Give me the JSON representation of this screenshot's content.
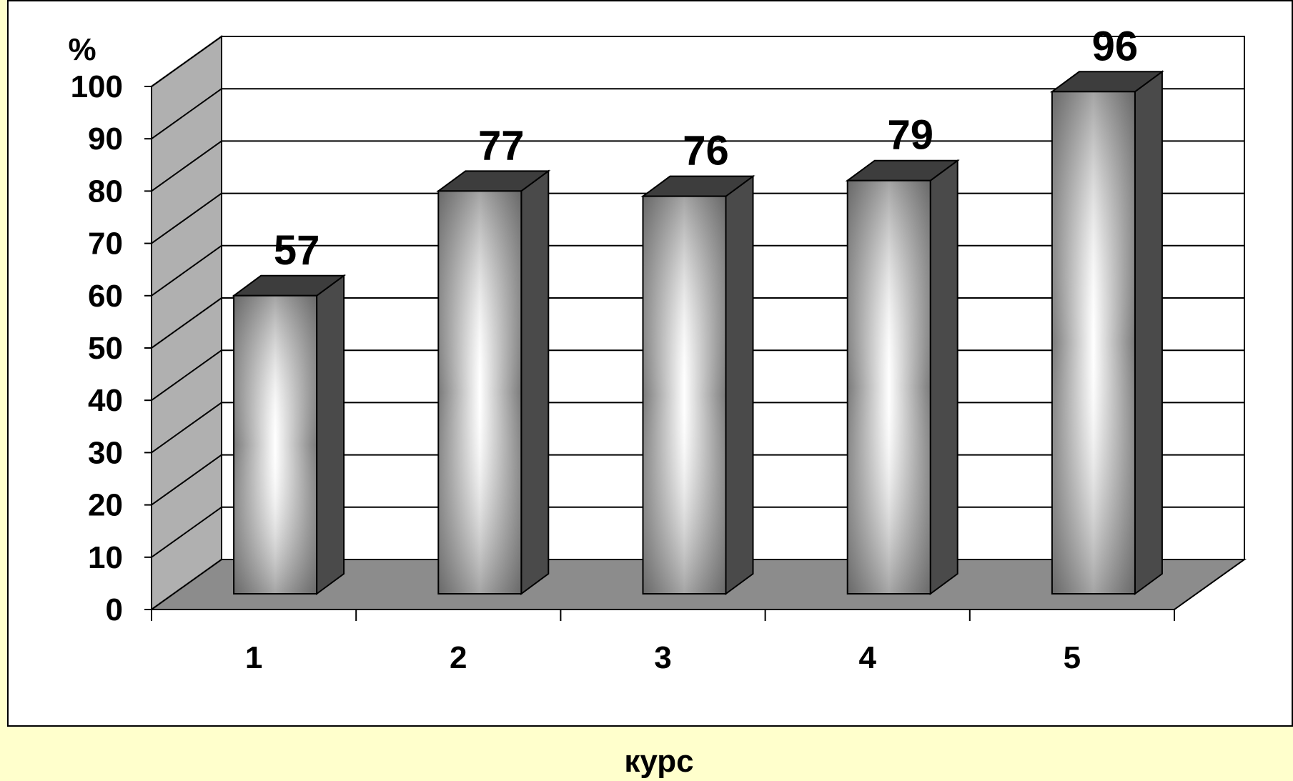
{
  "page": {
    "background": "#ffffcc",
    "plot_background": "#ffffff"
  },
  "chart_data": {
    "type": "bar",
    "style": "3d-column",
    "categories": [
      "1",
      "2",
      "3",
      "4",
      "5"
    ],
    "values": [
      57,
      77,
      76,
      79,
      96
    ],
    "data_labels": [
      "57",
      "77",
      "76",
      "79",
      "96"
    ],
    "title": "",
    "xlabel": "курс",
    "ylabel": "%",
    "ylim": [
      0,
      100
    ],
    "yticks": [
      "0",
      "10",
      "20",
      "30",
      "40",
      "50",
      "60",
      "70",
      "80",
      "90",
      "100"
    ],
    "grid": true,
    "legend": false,
    "colors": {
      "bar_front_edge": "#7a7a7a",
      "bar_front_center": "#ffffff",
      "bar_side": "#4a4a4a",
      "bar_top": "#3d3d3d",
      "wall_side": "#b0b0b0",
      "floor": "#8c8c8c",
      "gridline": "#000000"
    }
  }
}
